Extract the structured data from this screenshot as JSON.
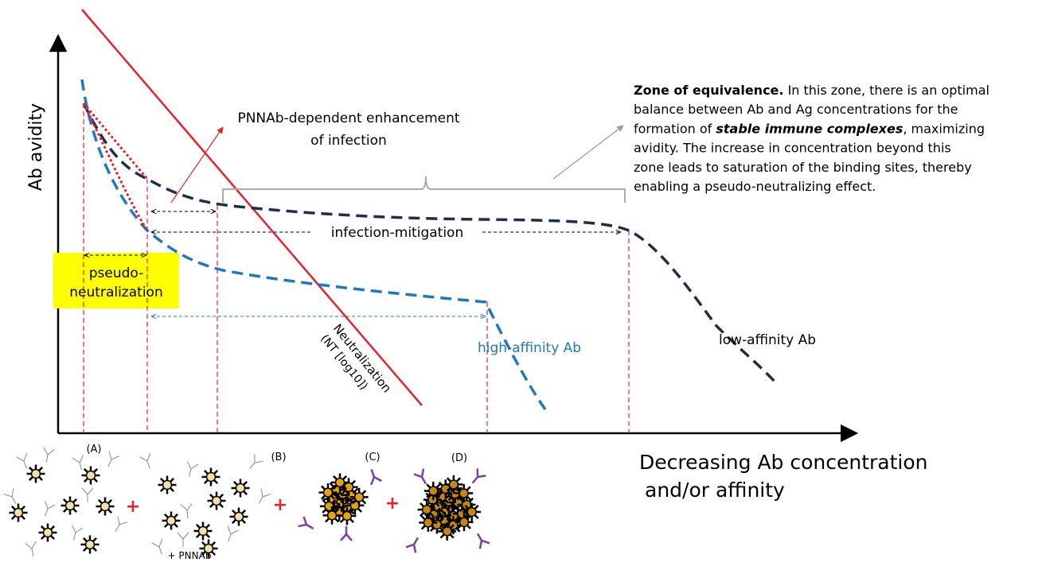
{
  "y_axis_label": "Ab avidity",
  "x_axis_label": [
    "Decreasing Ab concentration",
    "and/or affinity"
  ],
  "enhancement_label": [
    "PNNAb-dependent enhancement",
    "of infection"
  ],
  "zone_of_equivalence": {
    "lines": [
      [
        {
          "text": "Zone of equivalence.",
          "style": "bold"
        },
        {
          "text": " In this zone, there is an optimal"
        }
      ],
      [
        {
          "text": "balance between Ab and Ag concentrations for the"
        }
      ],
      [
        {
          "text": "formation of "
        },
        {
          "text": "stable immune complexes",
          "style": "bold-italic"
        },
        {
          "text": ", maximizing"
        }
      ],
      [
        {
          "text": "avidity. The increase in concentration beyond this"
        }
      ],
      [
        {
          "text": "zone leads to saturation of the binding sites, thereby"
        }
      ],
      [
        {
          "text": "enabling a pseudo-neutralizing effect."
        }
      ]
    ]
  },
  "infection_mitigation": "infection-mitigation",
  "pseudo_neutralization": [
    "pseudo-",
    "neutralization"
  ],
  "neutralization": [
    "Neutralization",
    "(NT [log10])"
  ],
  "curves": {
    "high_affinity": "high-affinity Ab",
    "low_affinity": "low-affinity Ab"
  },
  "stages": [
    "(A)",
    "(B)",
    "(C)",
    "(D)"
  ],
  "pnnab": "+ PNNAb",
  "plus": "+"
}
